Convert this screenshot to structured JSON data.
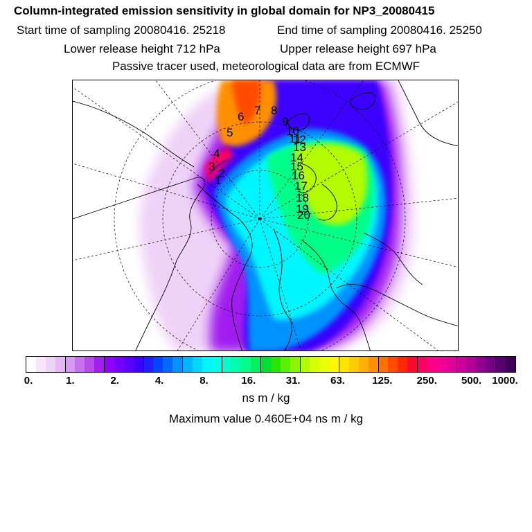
{
  "header": {
    "title": "Column-integrated emission sensitivity in global domain for NP3_20080415",
    "start_label": "Start time of sampling 20080416. 25218",
    "end_label": "End time of sampling 20080416. 25250",
    "lower_label": "Lower release height  712 hPa",
    "upper_label": "Upper release height  697 hPa",
    "tracer_label": "Passive tracer used, meteorological data are from ECMWF"
  },
  "map": {
    "trajectory_labels": [
      "1",
      "2",
      "3",
      "4",
      "5",
      "6",
      "7",
      "8",
      "9",
      "10",
      "11",
      "12",
      "13",
      "14",
      "15",
      "16",
      "17",
      "18",
      "19",
      "20"
    ]
  },
  "colorbar": {
    "tick_labels": [
      "0.",
      "1.",
      "2.",
      "4.",
      "8.",
      "16.",
      "31.",
      "63.",
      "125.",
      "250.",
      "500.",
      "1000."
    ],
    "colors": [
      "#ffffff",
      "#f5e6fb",
      "#efd2f8",
      "#e6b8f5",
      "#d79cf2",
      "#c770ee",
      "#b74ceb",
      "#a01ef0",
      "#8f00ff",
      "#7600ff",
      "#5a00ff",
      "#3b00ff",
      "#1f1fff",
      "#0046ff",
      "#006cff",
      "#0093ff",
      "#00b6ff",
      "#00d8ff",
      "#00f6ff",
      "#00ffe6",
      "#00ffcc",
      "#00ffaa",
      "#00ff88",
      "#00f060",
      "#00e030",
      "#29e600",
      "#5cf000",
      "#8cf500",
      "#b4fa00",
      "#d8ff00",
      "#ecff00",
      "#fff800",
      "#ffe600",
      "#ffcc00",
      "#ffb000",
      "#ff9000",
      "#ff7000",
      "#ff4c00",
      "#ff2a00",
      "#ff0a2a",
      "#ff0060",
      "#ff0088",
      "#f20094",
      "#e0009a",
      "#cc009c",
      "#b00098",
      "#920090",
      "#740086",
      "#560070",
      "#3c0058"
    ],
    "units": "ns m / kg",
    "max_label": "Maximum value  0.460E+04 ns m / kg"
  }
}
